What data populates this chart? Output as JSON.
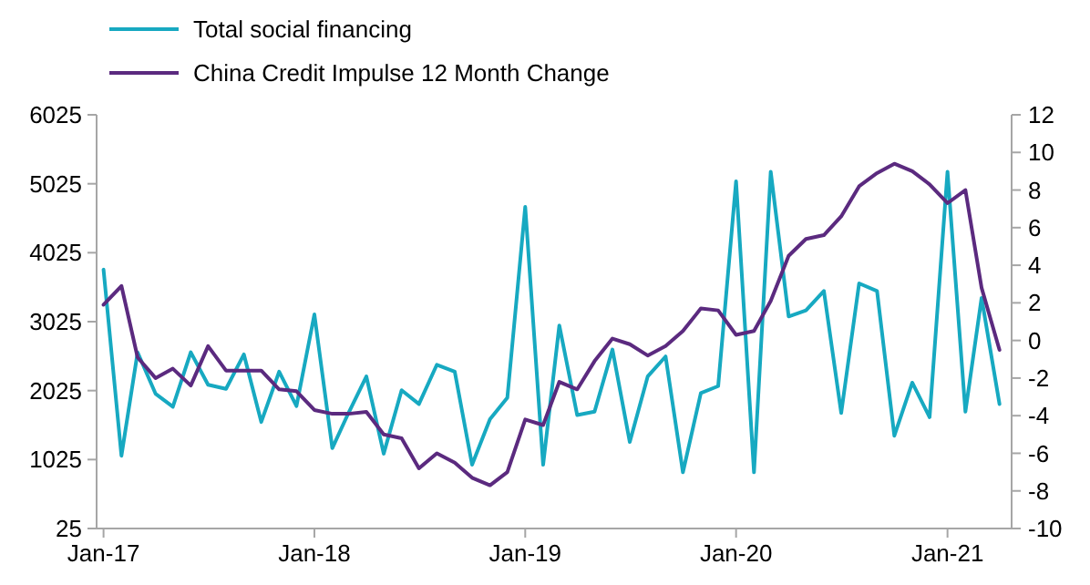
{
  "chart_data": {
    "type": "line",
    "legend": "top",
    "grid": false,
    "marker": "none",
    "line_style": "solid",
    "x": [
      "2017-01",
      "2017-02",
      "2017-03",
      "2017-04",
      "2017-05",
      "2017-06",
      "2017-07",
      "2017-08",
      "2017-09",
      "2017-10",
      "2017-11",
      "2017-12",
      "2018-01",
      "2018-02",
      "2018-03",
      "2018-04",
      "2018-05",
      "2018-06",
      "2018-07",
      "2018-08",
      "2018-09",
      "2018-10",
      "2018-11",
      "2018-12",
      "2019-01",
      "2019-02",
      "2019-03",
      "2019-04",
      "2019-05",
      "2019-06",
      "2019-07",
      "2019-08",
      "2019-09",
      "2019-10",
      "2019-11",
      "2019-12",
      "2020-01",
      "2020-02",
      "2020-03",
      "2020-04",
      "2020-05",
      "2020-06",
      "2020-07",
      "2020-08",
      "2020-09",
      "2020-10",
      "2020-11",
      "2020-12",
      "2021-01",
      "2021-02",
      "2021-03",
      "2021-04"
    ],
    "xlim": [
      "2016-12-20",
      "2021-04-22"
    ],
    "xticks": [
      {
        "value": "2017-01",
        "label": "Jan-17"
      },
      {
        "value": "2018-01",
        "label": "Jan-18"
      },
      {
        "value": "2019-01",
        "label": "Jan-19"
      },
      {
        "value": "2020-01",
        "label": "Jan-20"
      },
      {
        "value": "2021-01",
        "label": "Jan-21"
      }
    ],
    "ylim": [
      25,
      6025
    ],
    "yticks": [
      25,
      1025,
      2025,
      3025,
      4025,
      5025,
      6025
    ],
    "y2lim": [
      -10,
      12
    ],
    "y2ticks": [
      -10,
      -8,
      -6,
      -4,
      -2,
      0,
      2,
      4,
      6,
      8,
      10,
      12
    ],
    "series": [
      {
        "name": "Total social financing",
        "color": "#17a9c1",
        "values": [
          3780,
          1080,
          2580,
          1980,
          1790,
          2580,
          2110,
          2050,
          2550,
          1570,
          2300,
          1800,
          3130,
          1190,
          1700,
          2230,
          1110,
          2030,
          1830,
          2400,
          2300,
          950,
          1610,
          1920,
          4690,
          950,
          2970,
          1670,
          1720,
          2620,
          1280,
          2230,
          2520,
          840,
          1990,
          2090,
          5060,
          840,
          5200,
          3100,
          3190,
          3470,
          1700,
          3580,
          3470,
          1370,
          2140,
          1640,
          5200,
          1720,
          3370,
          1830
        ]
      },
      {
        "name": "China Credit Impulse 12 Month Change",
        "color": "#5b2a7f",
        "axis": "y2",
        "values": [
          1.9,
          2.9,
          -0.9,
          -2.0,
          -1.5,
          -2.4,
          -0.3,
          -1.6,
          -1.6,
          -1.6,
          -2.6,
          -2.7,
          -3.7,
          -3.9,
          -3.9,
          -3.8,
          -5.0,
          -5.2,
          -6.8,
          -6.0,
          -6.5,
          -7.3,
          -7.7,
          -7.0,
          -4.2,
          -4.5,
          -2.2,
          -2.6,
          -1.1,
          0.1,
          -0.2,
          -0.8,
          -0.3,
          0.5,
          1.7,
          1.6,
          0.3,
          0.5,
          2.1,
          4.5,
          5.4,
          5.6,
          6.6,
          8.2,
          8.9,
          9.4,
          9.0,
          8.3,
          7.3,
          8.0,
          2.8,
          -0.5
        ]
      }
    ]
  }
}
